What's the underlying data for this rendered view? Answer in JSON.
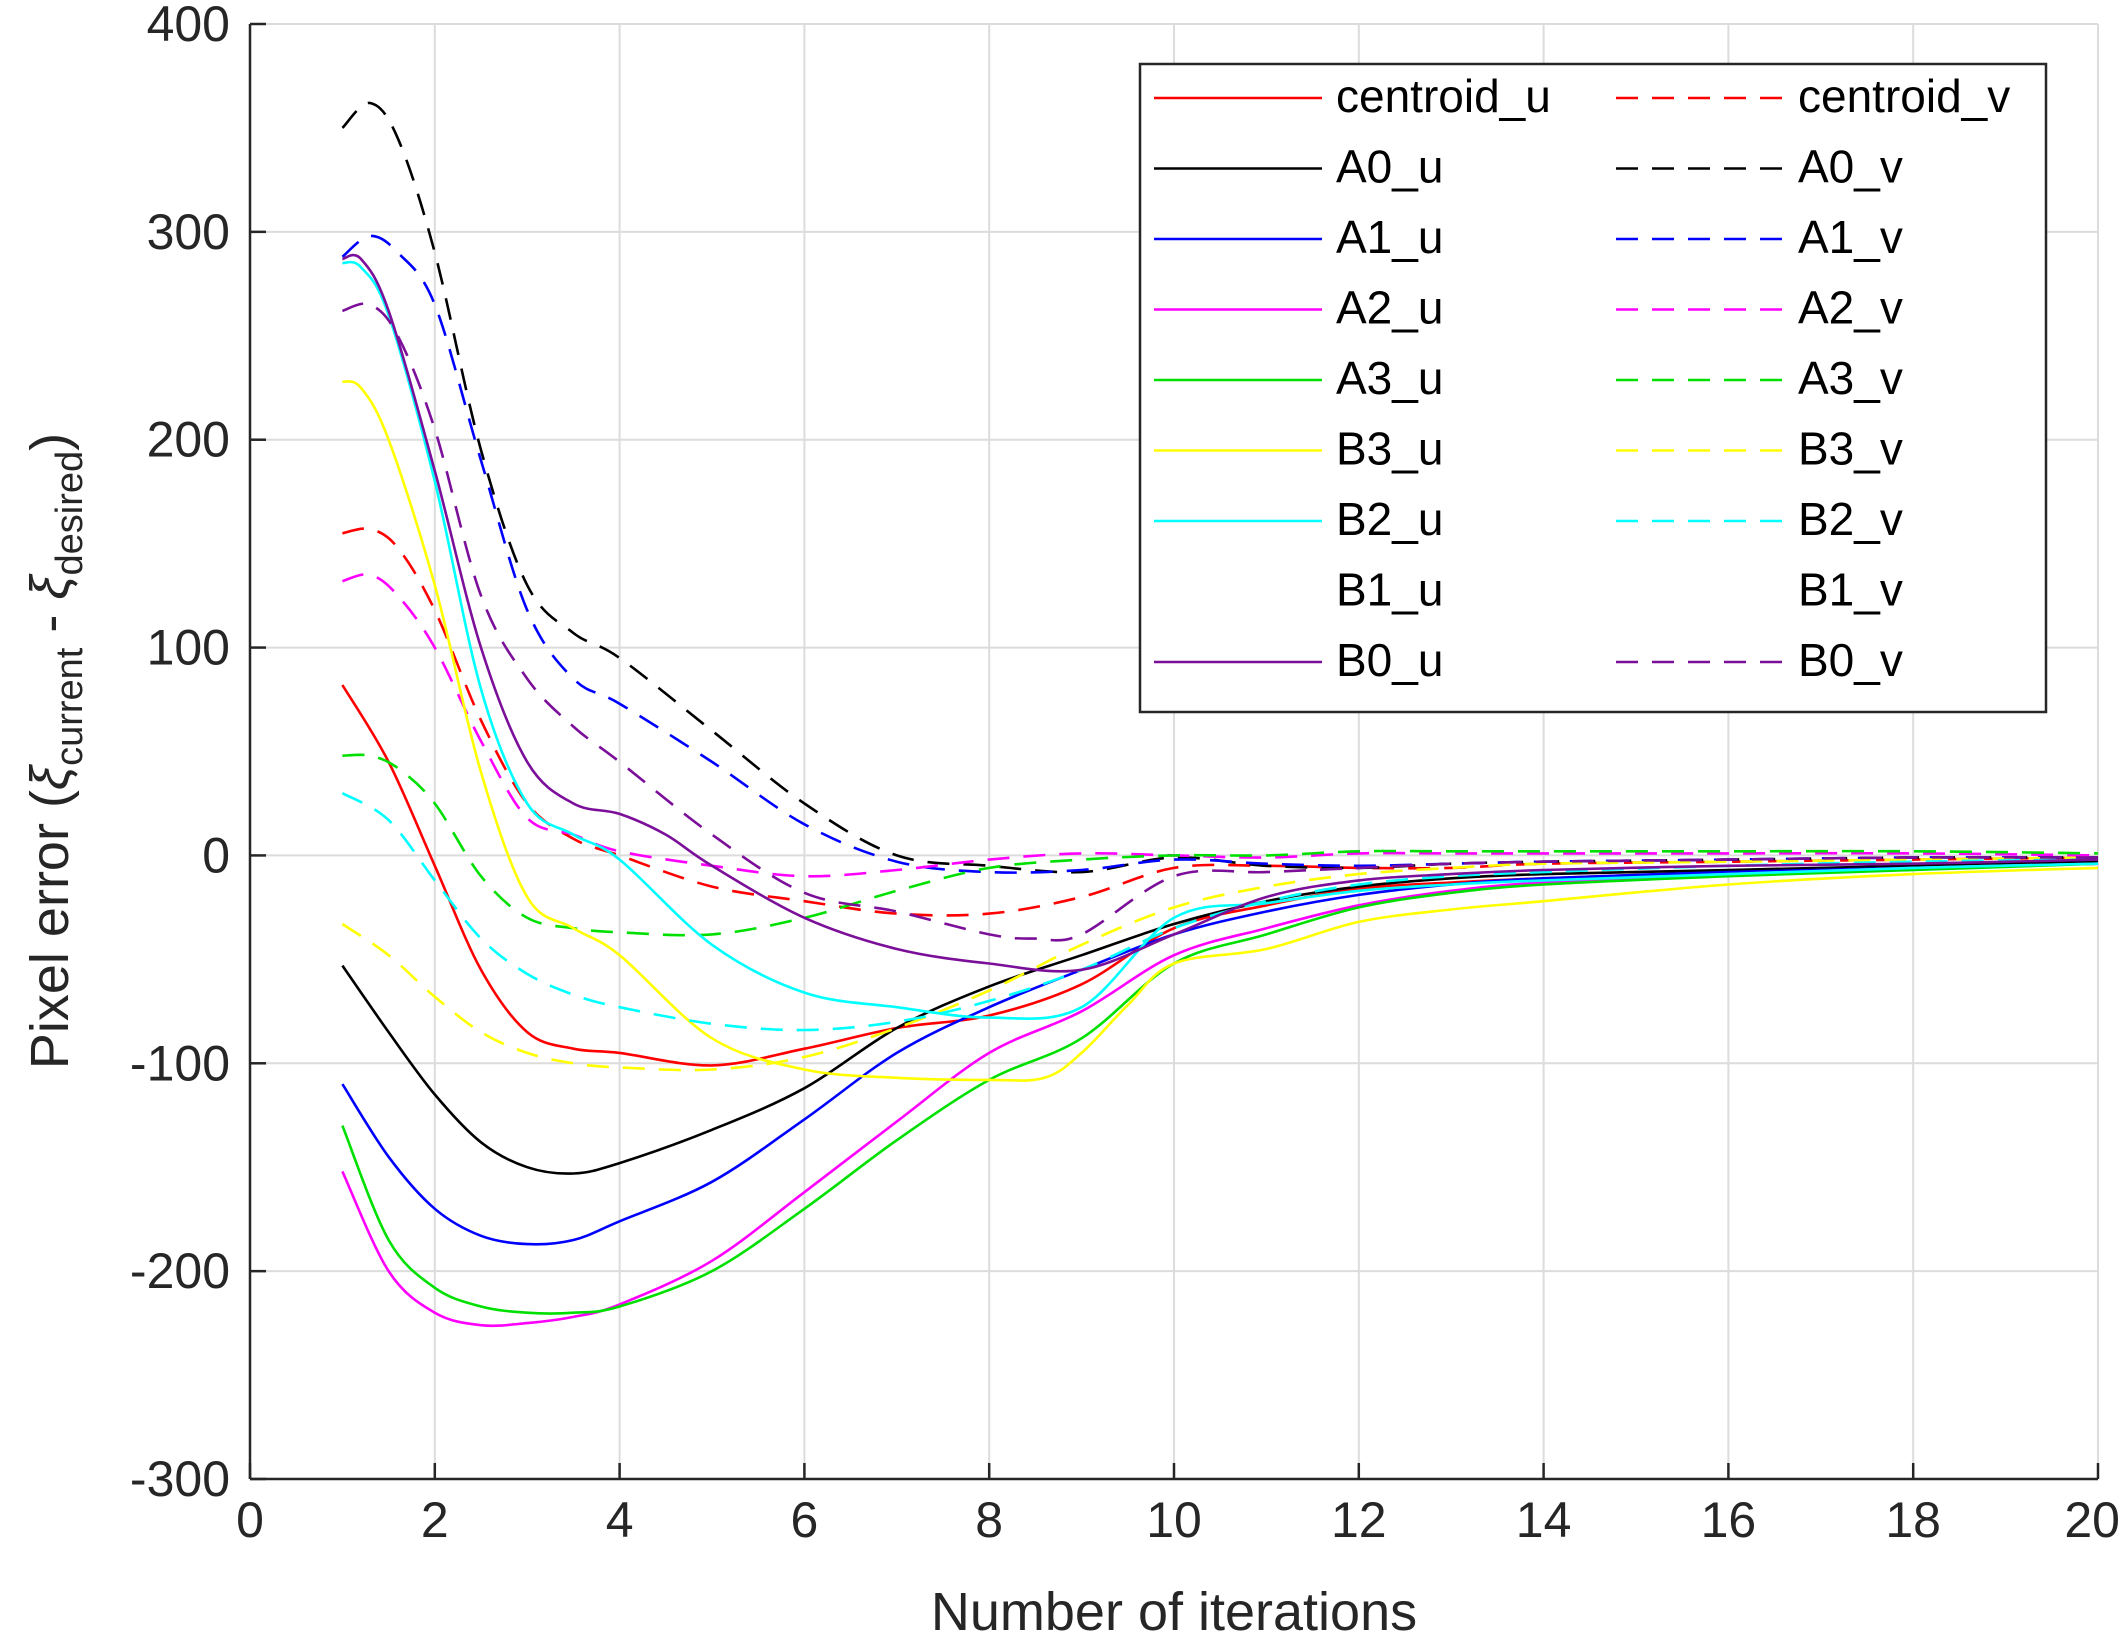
{
  "chart_data": {
    "type": "line",
    "title": "",
    "xlabel": "Number of iterations",
    "ylabel": {
      "prefix": "Pixel error (",
      "xi1": "ξ",
      "sub1": "current",
      "mid": " - ",
      "xi2": "ξ",
      "sub2": "desired",
      "suffix": ")"
    },
    "xlim": [
      0,
      20
    ],
    "ylim": [
      -300,
      400
    ],
    "x_ticks": [
      0,
      2,
      4,
      6,
      8,
      10,
      12,
      14,
      16,
      18,
      20
    ],
    "y_ticks": [
      -300,
      -200,
      -100,
      0,
      100,
      200,
      300,
      400
    ],
    "grid": true,
    "legend": {
      "position": "top-right",
      "columns": 2
    },
    "series": [
      {
        "name": "centroid_u",
        "color": "#ff0000",
        "dash": "solid",
        "x": [
          1,
          1.5,
          2,
          2.5,
          3,
          3.5,
          4,
          5,
          6,
          7,
          8,
          9,
          10,
          11,
          12,
          13,
          14,
          16,
          18,
          20
        ],
        "y": [
          82,
          45,
          -5,
          -55,
          -85,
          -93,
          -95,
          -101,
          -93,
          -83,
          -77,
          -62,
          -35,
          -24,
          -16,
          -13,
          -11,
          -8,
          -6,
          -4
        ]
      },
      {
        "name": "centroid_v",
        "color": "#ff0000",
        "dash": "dashed",
        "x": [
          1,
          1.3,
          1.6,
          2,
          2.5,
          3,
          3.5,
          4,
          5,
          6,
          7,
          8,
          9,
          10,
          11,
          12,
          13,
          14,
          16,
          18,
          20
        ],
        "y": [
          155,
          157,
          148,
          118,
          65,
          25,
          8,
          0,
          -15,
          -22,
          -28,
          -28,
          -20,
          -6,
          -5,
          -6,
          -6,
          -4,
          -3,
          -2,
          -1
        ]
      },
      {
        "name": "A0_u",
        "color": "#000000",
        "dash": "solid",
        "x": [
          1,
          1.5,
          2,
          2.5,
          3,
          3.5,
          4,
          5,
          6,
          7,
          8,
          9,
          10,
          11,
          12,
          13,
          14,
          16,
          18,
          20
        ],
        "y": [
          -53,
          -85,
          -115,
          -138,
          -150,
          -153,
          -148,
          -132,
          -112,
          -83,
          -63,
          -48,
          -33,
          -22,
          -15,
          -11,
          -9,
          -7,
          -5,
          -3
        ]
      },
      {
        "name": "A0_v",
        "color": "#000000",
        "dash": "dashed",
        "x": [
          1,
          1.3,
          1.6,
          2,
          2.5,
          3,
          3.5,
          4,
          5,
          6,
          7,
          8,
          9,
          10,
          11,
          12,
          13,
          14,
          16,
          18,
          20
        ],
        "y": [
          350,
          362,
          345,
          290,
          195,
          130,
          107,
          95,
          60,
          25,
          0,
          -5,
          -8,
          -1,
          -5,
          -6,
          -4,
          -3,
          -2,
          -1,
          -1
        ]
      },
      {
        "name": "A1_u",
        "color": "#0000ff",
        "dash": "solid",
        "x": [
          1,
          1.5,
          2,
          2.5,
          3,
          3.5,
          4,
          5,
          6,
          7,
          8,
          9,
          10,
          11,
          12,
          13,
          14,
          16,
          18,
          20
        ],
        "y": [
          -110,
          -145,
          -170,
          -183,
          -187,
          -185,
          -176,
          -157,
          -127,
          -95,
          -73,
          -55,
          -38,
          -27,
          -19,
          -14,
          -11,
          -8,
          -6,
          -4
        ]
      },
      {
        "name": "A1_v",
        "color": "#0000ff",
        "dash": "dashed",
        "x": [
          1,
          1.3,
          1.6,
          2,
          2.5,
          3,
          3.5,
          4,
          5,
          6,
          7,
          8,
          9,
          10,
          11,
          12,
          13,
          14,
          16,
          18,
          20
        ],
        "y": [
          288,
          298,
          290,
          265,
          190,
          118,
          85,
          73,
          45,
          15,
          -3,
          -8,
          -7,
          -2,
          -4,
          -5,
          -4,
          -3,
          -2,
          -1,
          -1
        ]
      },
      {
        "name": "A2_u",
        "color": "#ff00ff",
        "dash": "solid",
        "x": [
          1,
          1.5,
          2,
          2.5,
          3,
          3.5,
          4,
          5,
          6,
          7,
          8,
          9,
          10,
          11,
          12,
          13,
          14,
          16,
          18,
          20
        ],
        "y": [
          -152,
          -200,
          -220,
          -226,
          -225,
          -222,
          -216,
          -195,
          -162,
          -128,
          -95,
          -75,
          -48,
          -35,
          -24,
          -17,
          -13,
          -9,
          -6,
          -4
        ]
      },
      {
        "name": "A2_v",
        "color": "#ff00ff",
        "dash": "dashed",
        "x": [
          1,
          1.3,
          1.6,
          2,
          2.5,
          3,
          3.5,
          4,
          5,
          6,
          7,
          8,
          9,
          10,
          11,
          12,
          13,
          14,
          16,
          18,
          20
        ],
        "y": [
          132,
          135,
          125,
          100,
          55,
          18,
          10,
          2,
          -5,
          -10,
          -7,
          -2,
          1,
          0,
          -1,
          1,
          1,
          1,
          1,
          1,
          0
        ]
      },
      {
        "name": "A3_u",
        "color": "#00e000",
        "dash": "solid",
        "x": [
          1,
          1.5,
          2,
          2.5,
          3,
          3.5,
          4,
          5,
          6,
          7,
          8,
          9,
          10,
          11,
          12,
          13,
          14,
          16,
          18,
          20
        ],
        "y": [
          -130,
          -185,
          -208,
          -217,
          -220,
          -220,
          -217,
          -200,
          -170,
          -137,
          -108,
          -88,
          -52,
          -38,
          -25,
          -18,
          -14,
          -10,
          -7,
          -4
        ]
      },
      {
        "name": "A3_v",
        "color": "#00e000",
        "dash": "dashed",
        "x": [
          1,
          1.3,
          1.6,
          2,
          2.5,
          3,
          3.5,
          4,
          5,
          6,
          7,
          8,
          9,
          10,
          11,
          12,
          13,
          14,
          16,
          18,
          20
        ],
        "y": [
          48,
          48,
          42,
          25,
          -10,
          -30,
          -35,
          -37,
          -38,
          -30,
          -17,
          -6,
          -2,
          0,
          0,
          2,
          2,
          2,
          2,
          2,
          1
        ]
      },
      {
        "name": "B3_u",
        "color": "#ffff00",
        "dash": "solid",
        "x": [
          1,
          1.2,
          1.5,
          2,
          2.5,
          3,
          3.5,
          4,
          5,
          6,
          7,
          8,
          8.6,
          9,
          9.5,
          10,
          11,
          12,
          13,
          14,
          16,
          18,
          20
        ],
        "y": [
          228,
          225,
          200,
          130,
          40,
          -20,
          -35,
          -48,
          -88,
          -103,
          -107,
          -108,
          -107,
          -95,
          -72,
          -52,
          -45,
          -32,
          -26,
          -22,
          -14,
          -9,
          -6
        ]
      },
      {
        "name": "B3_v",
        "color": "#ffff00",
        "dash": "dashed",
        "x": [
          1,
          1.5,
          2,
          2.5,
          3,
          3.5,
          4,
          5,
          6,
          7,
          8,
          9,
          10,
          11,
          12,
          13,
          14,
          16,
          18,
          20
        ],
        "y": [
          -33,
          -48,
          -68,
          -85,
          -95,
          -100,
          -102,
          -103,
          -97,
          -83,
          -65,
          -43,
          -25,
          -15,
          -9,
          -6,
          -4,
          -3,
          -2,
          -1
        ]
      },
      {
        "name": "B2_u",
        "color": "#00ffff",
        "dash": "solid",
        "x": [
          1,
          1.2,
          1.5,
          2,
          2.5,
          3,
          3.5,
          4,
          5,
          6,
          7,
          8,
          9,
          10,
          11,
          12,
          13,
          14,
          16,
          18,
          20
        ],
        "y": [
          285,
          283,
          260,
          180,
          80,
          25,
          10,
          -2,
          -43,
          -66,
          -73,
          -78,
          -73,
          -30,
          -23,
          -17,
          -14,
          -12,
          -9,
          -6,
          -4
        ]
      },
      {
        "name": "B2_v",
        "color": "#00ffff",
        "dash": "dashed",
        "x": [
          1,
          1.5,
          2,
          2.5,
          3,
          3.5,
          4,
          5,
          6,
          7,
          8,
          9,
          10,
          11,
          12,
          13,
          14,
          16,
          18,
          20
        ],
        "y": [
          30,
          17,
          -12,
          -40,
          -57,
          -67,
          -73,
          -81,
          -84,
          -80,
          -70,
          -55,
          -35,
          -22,
          -14,
          -10,
          -8,
          -5,
          -3,
          -2
        ]
      },
      {
        "name": "B1_u",
        "color": "none",
        "dash": "solid",
        "x": [],
        "y": []
      },
      {
        "name": "B1_v",
        "color": "none",
        "dash": "dashed",
        "x": [],
        "y": []
      },
      {
        "name": "B0_u",
        "color": "#7b0f99",
        "dash": "solid",
        "x": [
          1,
          1.2,
          1.5,
          2,
          2.5,
          3,
          3.5,
          4,
          4.5,
          5,
          6,
          7,
          8,
          9,
          10,
          11,
          12,
          13,
          14,
          16,
          18,
          20
        ],
        "y": [
          287,
          287,
          262,
          185,
          100,
          45,
          25,
          20,
          10,
          -5,
          -30,
          -45,
          -52,
          -55,
          -38,
          -20,
          -12,
          -9,
          -7,
          -5,
          -4,
          -2
        ]
      },
      {
        "name": "B0_v",
        "color": "#7b0f99",
        "dash": "dashed",
        "x": [
          1,
          1.3,
          1.6,
          2,
          2.5,
          3,
          3.5,
          4,
          5,
          6,
          7,
          8,
          8.5,
          9,
          10,
          11,
          12,
          13,
          14,
          16,
          18,
          20
        ],
        "y": [
          262,
          265,
          250,
          205,
          125,
          85,
          62,
          45,
          10,
          -18,
          -27,
          -38,
          -40,
          -38,
          -10,
          -8,
          -6,
          -4,
          -3,
          -2,
          -1,
          -1
        ]
      }
    ]
  }
}
